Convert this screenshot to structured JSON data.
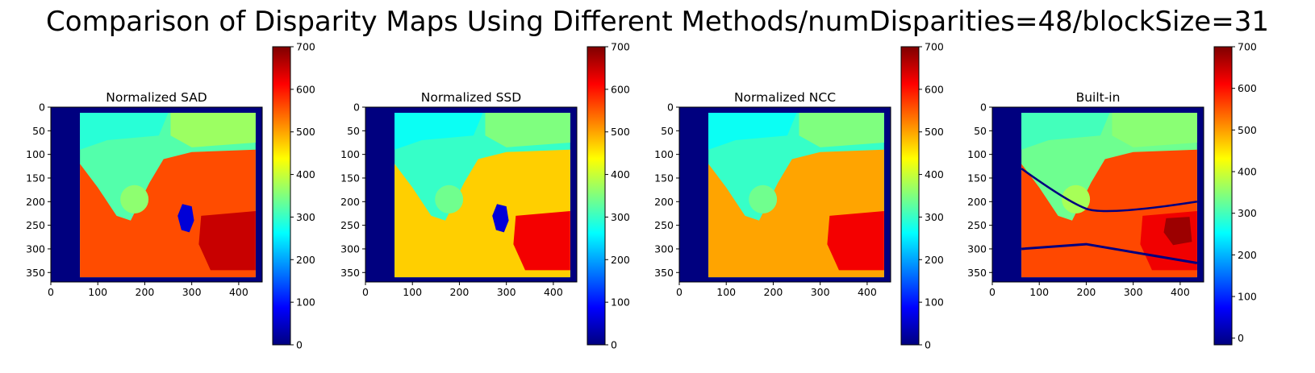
{
  "suptitle": "Comparison of Disparity Maps Using Different Methods/numDisparities=48/blockSize=31",
  "colormap": {
    "name": "jet",
    "stops": [
      "#00007f",
      "#0000ff",
      "#007fff",
      "#00ffff",
      "#7fff7f",
      "#ffff00",
      "#ff7f00",
      "#ff0000",
      "#7f0000"
    ]
  },
  "chart_data": [
    {
      "type": "heatmap",
      "title": "Normalized SAD",
      "xlim": [
        0,
        450
      ],
      "ylim": [
        370,
        0
      ],
      "xticks": [
        0,
        100,
        200,
        300,
        400
      ],
      "yticks": [
        0,
        50,
        100,
        150,
        200,
        250,
        300,
        350
      ],
      "colorbar": {
        "range": [
          0,
          700
        ],
        "ticks": [
          0,
          100,
          200,
          300,
          400,
          500,
          600,
          700
        ]
      },
      "invalid_border": {
        "left_x": 62,
        "right_x": 436,
        "top_y": 12,
        "bottom_y": 360,
        "value": 0
      },
      "regions": [
        {
          "name": "background-wall",
          "value": 320
        },
        {
          "name": "upper-right-object",
          "value": 370
        },
        {
          "name": "foreground-lower-left",
          "value": 560
        },
        {
          "name": "foreground-lower-right",
          "value": 650
        },
        {
          "name": "hole-dark",
          "value": 60
        }
      ]
    },
    {
      "type": "heatmap",
      "title": "Normalized SSD",
      "xlim": [
        0,
        450
      ],
      "ylim": [
        370,
        0
      ],
      "xticks": [
        0,
        100,
        200,
        300,
        400
      ],
      "yticks": [
        0,
        50,
        100,
        150,
        200,
        250,
        300,
        350
      ],
      "colorbar": {
        "range": [
          0,
          700
        ],
        "ticks": [
          0,
          100,
          200,
          300,
          400,
          500,
          600,
          700
        ]
      },
      "invalid_border": {
        "left_x": 62,
        "right_x": 436,
        "top_y": 12,
        "bottom_y": 360,
        "value": 0
      },
      "regions": [
        {
          "name": "background-wall",
          "value": 300
        },
        {
          "name": "upper-right-object",
          "value": 350
        },
        {
          "name": "foreground-lower-left",
          "value": 470
        },
        {
          "name": "foreground-lower-right",
          "value": 620
        },
        {
          "name": "hole-dark",
          "value": 60
        }
      ]
    },
    {
      "type": "heatmap",
      "title": "Normalized NCC",
      "xlim": [
        0,
        450
      ],
      "ylim": [
        370,
        0
      ],
      "xticks": [
        0,
        100,
        200,
        300,
        400
      ],
      "yticks": [
        0,
        50,
        100,
        150,
        200,
        250,
        300,
        350
      ],
      "colorbar": {
        "range": [
          0,
          700
        ],
        "ticks": [
          0,
          100,
          200,
          300,
          400,
          500,
          600,
          700
        ]
      },
      "invalid_border": {
        "left_x": 62,
        "right_x": 436,
        "top_y": 12,
        "bottom_y": 360,
        "value": 0
      },
      "regions": [
        {
          "name": "background-wall",
          "value": 300
        },
        {
          "name": "upper-right-object",
          "value": 350
        },
        {
          "name": "foreground-lower-left",
          "value": 500
        },
        {
          "name": "foreground-lower-right",
          "value": 620
        }
      ]
    },
    {
      "type": "heatmap",
      "title": "Built-in",
      "xlim": [
        0,
        450
      ],
      "ylim": [
        370,
        0
      ],
      "xticks": [
        0,
        100,
        200,
        300,
        400
      ],
      "yticks": [
        0,
        50,
        100,
        150,
        200,
        250,
        300,
        350
      ],
      "colorbar": {
        "range": [
          -16,
          700
        ],
        "ticks": [
          0,
          100,
          200,
          300,
          400,
          500,
          600,
          700
        ]
      },
      "invalid_border": {
        "left_x": 62,
        "right_x": 436,
        "top_y": 12,
        "bottom_y": 360,
        "value": -16
      },
      "regions": [
        {
          "name": "background-wall",
          "value": 330
        },
        {
          "name": "upper-right-object",
          "value": 350
        },
        {
          "name": "foreground-lower-left",
          "value": 560
        },
        {
          "name": "foreground-lower-right",
          "value": 620
        },
        {
          "name": "dark-object",
          "value": 680
        }
      ]
    }
  ]
}
